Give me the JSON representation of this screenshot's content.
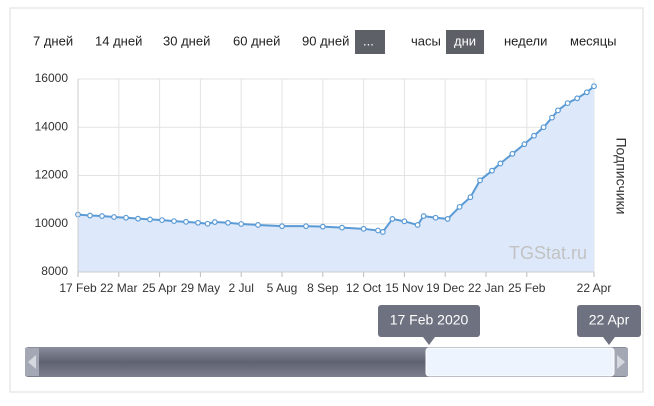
{
  "range_buttons": [
    "7 дней",
    "14 дней",
    "30 дней",
    "60 дней",
    "90 дней",
    "...",
    "часы",
    "дни",
    "недели",
    "месяцы"
  ],
  "watermark": "TGStat.ru",
  "navigator": {
    "start_label": "17 Feb 2020",
    "end_label": "22 Apr"
  },
  "chart_data": {
    "type": "area",
    "y_label": "Подписчики",
    "color": "#5b9bd5",
    "fill": "#dde9fa",
    "grid": true,
    "x": [
      0,
      10,
      20,
      30,
      40,
      50,
      60,
      70,
      80,
      90,
      100,
      108,
      114,
      125,
      136,
      150,
      170,
      190,
      204,
      220,
      238,
      250,
      254,
      262,
      272,
      283,
      288,
      298,
      308,
      318,
      327,
      335,
      345,
      352,
      362,
      372,
      380,
      388,
      395,
      400,
      408,
      416,
      424,
      430
    ],
    "values": [
      10380,
      10340,
      10320,
      10280,
      10250,
      10210,
      10180,
      10150,
      10110,
      10080,
      10040,
      10000,
      10070,
      10040,
      9990,
      9950,
      9900,
      9900,
      9880,
      9840,
      9790,
      9720,
      9660,
      10200,
      10100,
      9950,
      10320,
      10250,
      10200,
      10700,
      11100,
      11800,
      12200,
      12500,
      12900,
      13300,
      13650,
      14000,
      14400,
      14700,
      15000,
      15200,
      15450,
      15700
    ],
    "xlim": [
      0,
      430
    ],
    "xticks": [
      {
        "value": 0,
        "label": "17 Feb"
      },
      {
        "value": 34,
        "label": "22 Mar"
      },
      {
        "value": 68,
        "label": "25 Apr"
      },
      {
        "value": 102,
        "label": "29 May"
      },
      {
        "value": 136,
        "label": "2 Jul"
      },
      {
        "value": 170,
        "label": "5 Aug"
      },
      {
        "value": 204,
        "label": "8 Sep"
      },
      {
        "value": 238,
        "label": "12 Oct"
      },
      {
        "value": 272,
        "label": "15 Nov"
      },
      {
        "value": 306,
        "label": "19 Dec"
      },
      {
        "value": 340,
        "label": "22 Jan"
      },
      {
        "value": 374,
        "label": "25 Feb"
      },
      {
        "value": 430,
        "label": "22 Apr"
      }
    ],
    "ylim": [
      8000,
      16000
    ],
    "yticks": [
      8000,
      10000,
      12000,
      14000,
      16000
    ]
  }
}
